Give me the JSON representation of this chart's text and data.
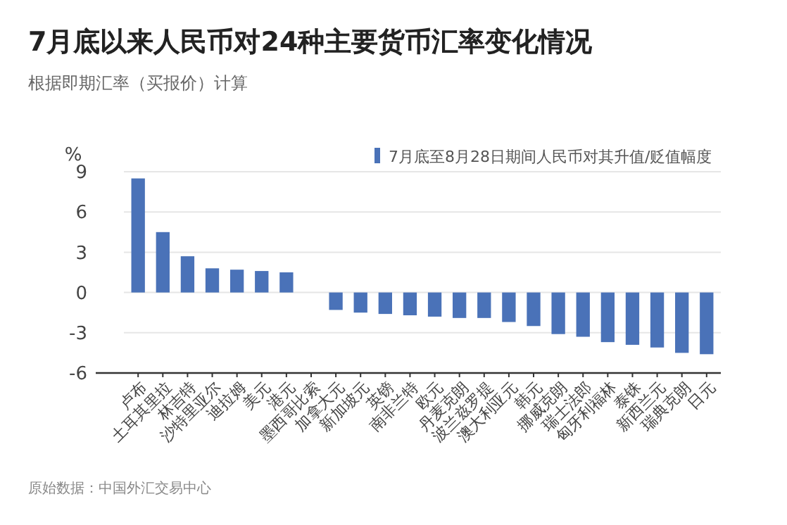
{
  "chart_data": {
    "type": "bar",
    "title": "7月底以来人民币对24种主要货币汇率变化情况",
    "subtitle": "根据即期汇率（买报价）计算",
    "ylabel": "%",
    "categories": [
      "卢布",
      "土耳其里拉",
      "林吉特",
      "沙特里亚尔",
      "迪拉姆",
      "美元",
      "港元",
      "墨西哥比索",
      "加拿大元",
      "新加坡元",
      "英镑",
      "南非兰特",
      "欧元",
      "丹麦克朗",
      "波兰兹罗提",
      "澳大利亚元",
      "韩元",
      "挪威克朗",
      "瑞士法郎",
      "匈牙利福林",
      "泰铢",
      "新西兰元",
      "瑞典克朗",
      "日元"
    ],
    "series": [
      {
        "name": "7月底至8月28日期间人民币对其升值/贬值幅度",
        "color": "#4a72b8",
        "values": [
          8.5,
          4.5,
          2.7,
          1.8,
          1.7,
          1.6,
          1.5,
          0,
          -1.3,
          -1.5,
          -1.6,
          -1.7,
          -1.8,
          -1.9,
          -1.9,
          -2.2,
          -2.5,
          -3.1,
          -3.3,
          -3.7,
          -3.9,
          -4.1,
          -4.5,
          -4.6
        ]
      }
    ],
    "ylim": [
      -6,
      9
    ],
    "yticks": [
      -6,
      -3,
      0,
      3,
      6,
      9
    ],
    "grid": "y",
    "legend": "top right",
    "annotations": [
      "原始数据：中国外汇交易中心"
    ]
  }
}
